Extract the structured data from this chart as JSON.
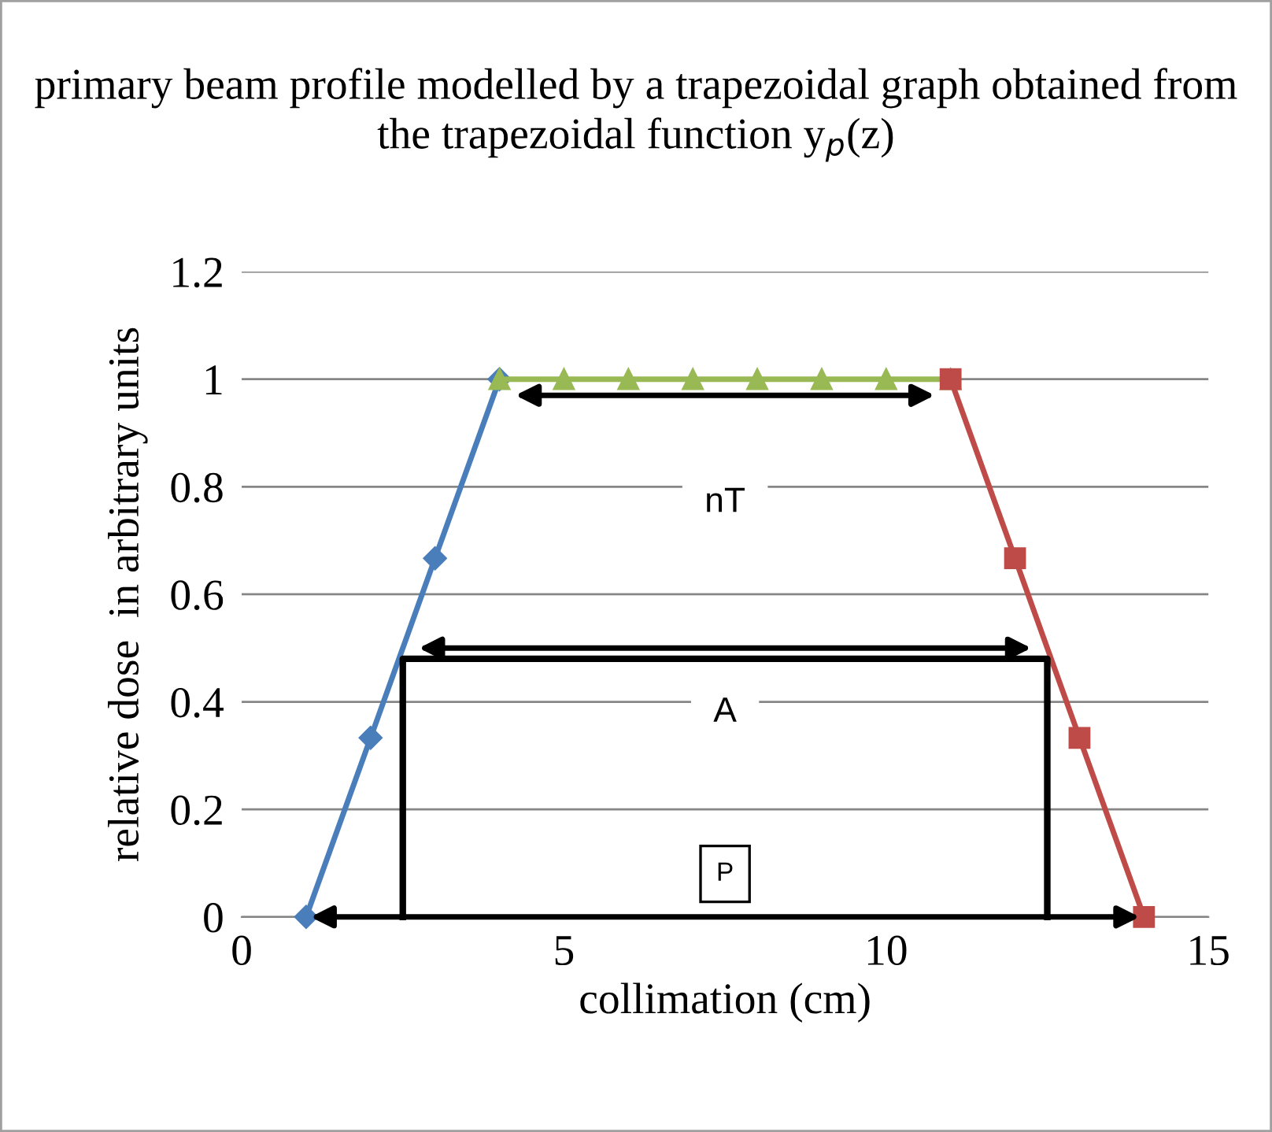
{
  "chart_data": {
    "type": "line",
    "title": "primary beam profile modelled by a trapezoidal graph obtained from the trapezoidal function y$_{p}$(z)",
    "xlabel": "collimation (cm)",
    "ylabel": "relative dose  in arbitrary units",
    "series": [
      {
        "color": "#4a7ebb",
        "marker": "diamond",
        "x": [
          1,
          2,
          3,
          4
        ],
        "values": [
          0,
          0.333,
          0.667,
          1
        ]
      },
      {
        "color": "#98b954",
        "marker": "triangle",
        "x": [
          4,
          5,
          6,
          7,
          8,
          9,
          10,
          11
        ],
        "values": [
          1,
          1,
          1,
          1,
          1,
          1,
          1,
          1
        ]
      },
      {
        "color": "#be4b48",
        "marker": "square",
        "x": [
          11,
          12,
          13,
          14
        ],
        "values": [
          1,
          0.667,
          0.333,
          0
        ]
      },
      {
        "color": "#000000",
        "marker": "none",
        "x": [
          2.5,
          2.5,
          12.5,
          12.5
        ],
        "values": [
          0,
          0.48,
          0.48,
          0
        ]
      }
    ],
    "annotations": [
      "nT",
      "A",
      "P"
    ],
    "xlim": [
      0,
      15
    ],
    "xticks": [
      0,
      5,
      10,
      15
    ],
    "ylim": [
      0,
      1.2
    ],
    "yticks": [
      0,
      0.2,
      0.4,
      0.6,
      0.8,
      1,
      1.2
    ],
    "grid": "y",
    "legend": false
  }
}
